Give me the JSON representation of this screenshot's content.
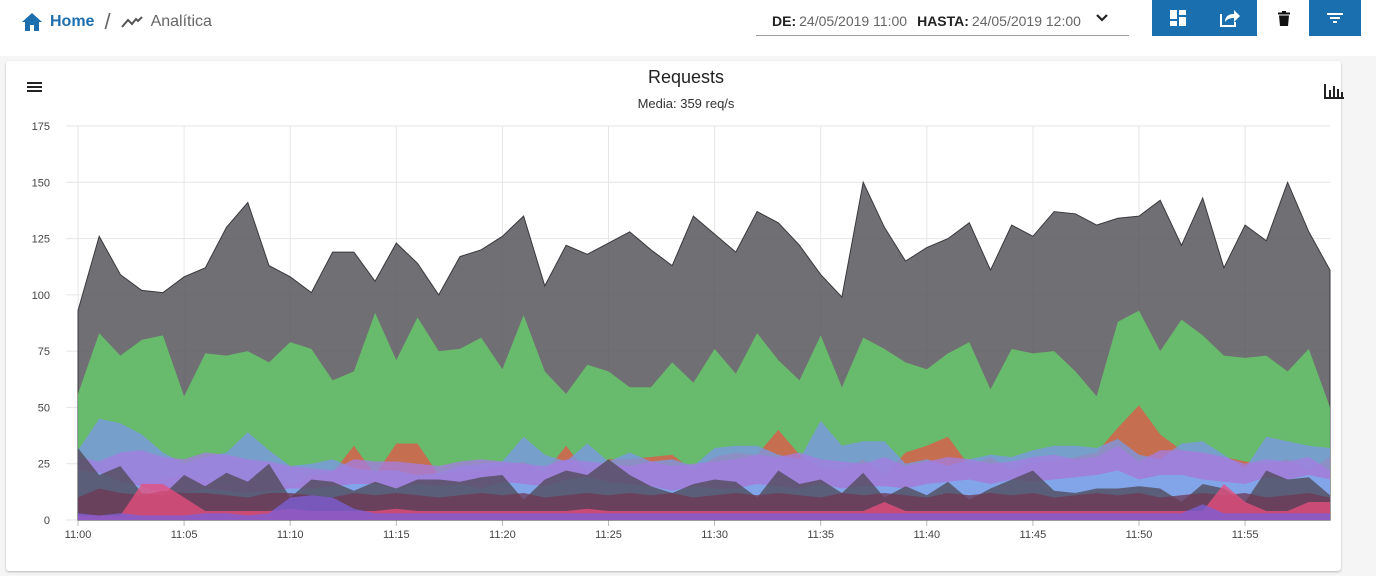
{
  "breadcrumb": {
    "home": "Home",
    "current": "Analítica"
  },
  "date_range": {
    "from_label": "DE:",
    "from_value": "24/05/2019 11:00",
    "to_label": "HASTA:",
    "to_value": "24/05/2019 12:00"
  },
  "colors": {
    "accent": "#1a6faf",
    "home_text": "#1d6fb0"
  },
  "icons": {
    "home": "home-icon",
    "analytics": "trending-icon",
    "dashboard": "dashboard-icon",
    "share": "share-icon",
    "trash": "trash-icon",
    "filter": "filter-icon",
    "menu": "menu-icon",
    "bar_chart": "bar-chart-icon",
    "chevron": "chevron-down-icon"
  },
  "chart_data": {
    "type": "area",
    "title": "Requests",
    "subtitle": "Media: 359 req/s",
    "ylim": [
      0,
      175
    ],
    "yticks": [
      0,
      25,
      50,
      75,
      100,
      125,
      150,
      175
    ],
    "xticks": [
      "11:00",
      "11:05",
      "11:10",
      "11:15",
      "11:20",
      "11:25",
      "11:30",
      "11:35",
      "11:40",
      "11:45",
      "11:50",
      "11:55"
    ],
    "grid": true,
    "x_count": 60,
    "series": [
      {
        "color": "#5c5b60",
        "values": [
          93,
          126,
          109,
          102,
          101,
          108,
          112,
          130,
          141,
          113,
          108,
          101,
          119,
          119,
          106,
          123,
          114,
          100,
          117,
          120,
          126,
          135,
          104,
          122,
          118,
          123,
          128,
          120,
          113,
          135,
          127,
          119,
          137,
          132,
          122,
          109,
          99,
          150,
          130,
          115,
          121,
          125,
          132,
          111,
          131,
          126,
          137,
          136,
          131,
          134,
          135,
          142,
          122,
          143,
          112,
          131,
          124,
          150,
          128,
          111
        ]
      },
      {
        "color": "#66cf6a",
        "values": [
          56,
          83,
          73,
          80,
          82,
          55,
          74,
          73,
          75,
          70,
          79,
          76,
          62,
          66,
          92,
          71,
          90,
          75,
          76,
          81,
          67,
          91,
          66,
          56,
          69,
          66,
          59,
          59,
          70,
          61,
          76,
          65,
          83,
          71,
          62,
          82,
          59,
          81,
          76,
          70,
          67,
          74,
          79,
          58,
          76,
          74,
          75,
          66,
          55,
          88,
          93,
          75,
          89,
          82,
          73,
          72,
          73,
          66,
          76,
          50
        ]
      },
      {
        "color": "#e05a48",
        "values": [
          18,
          16,
          14,
          17,
          18,
          20,
          17,
          16,
          18,
          18,
          15,
          20,
          21,
          33,
          20,
          34,
          34,
          20,
          22,
          22,
          24,
          26,
          21,
          33,
          21,
          27,
          27,
          28,
          29,
          22,
          28,
          30,
          29,
          40,
          29,
          23,
          22,
          27,
          20,
          30,
          33,
          37,
          24,
          28,
          22,
          26,
          26,
          28,
          30,
          41,
          51,
          38,
          31,
          30,
          28,
          26,
          25,
          27,
          22,
          28
        ]
      },
      {
        "color": "#7a99e6",
        "values": [
          31,
          45,
          43,
          38,
          30,
          25,
          28,
          30,
          39,
          31,
          24,
          25,
          27,
          23,
          22,
          22,
          20,
          21,
          24,
          25,
          26,
          37,
          29,
          26,
          34,
          26,
          30,
          26,
          27,
          24,
          32,
          33,
          33,
          29,
          27,
          44,
          33,
          35,
          35,
          25,
          27,
          24,
          27,
          29,
          28,
          31,
          33,
          33,
          32,
          36,
          29,
          27,
          34,
          35,
          29,
          23,
          37,
          35,
          33,
          32
        ]
      },
      {
        "color": "#a47ee0",
        "values": [
          28,
          26,
          30,
          31,
          28,
          27,
          30,
          29,
          27,
          26,
          24,
          23,
          22,
          27,
          26,
          26,
          25,
          24,
          26,
          27,
          26,
          25,
          24,
          27,
          26,
          25,
          24,
          26,
          24,
          25,
          26,
          27,
          29,
          28,
          30,
          27,
          26,
          25,
          28,
          24,
          26,
          28,
          27,
          25,
          26,
          28,
          29,
          27,
          28,
          33,
          26,
          31,
          31,
          30,
          28,
          25,
          27,
          26,
          28,
          22
        ]
      },
      {
        "color": "#7ab0ee",
        "values": [
          22,
          21,
          17,
          15,
          12,
          12,
          14,
          13,
          12,
          13,
          14,
          14,
          15,
          16,
          16,
          14,
          16,
          15,
          16,
          14,
          17,
          16,
          15,
          18,
          19,
          17,
          16,
          15,
          13,
          15,
          14,
          14,
          16,
          15,
          14,
          16,
          14,
          15,
          15,
          14,
          16,
          17,
          18,
          16,
          18,
          17,
          18,
          19,
          20,
          22,
          18,
          20,
          20,
          18,
          17,
          16,
          19,
          18,
          20,
          18
        ]
      },
      {
        "color": "#4f4a58",
        "values": [
          32,
          20,
          24,
          12,
          11,
          20,
          15,
          21,
          17,
          25,
          10,
          18,
          17,
          13,
          17,
          14,
          18,
          18,
          17,
          19,
          20,
          9,
          18,
          22,
          20,
          27,
          20,
          15,
          12,
          16,
          18,
          17,
          10,
          22,
          16,
          18,
          12,
          21,
          10,
          15,
          11,
          17,
          9,
          14,
          18,
          22,
          13,
          12,
          14,
          14,
          15,
          14,
          8,
          16,
          14,
          8,
          22,
          18,
          19,
          11
        ]
      },
      {
        "color": "#6d3a55",
        "values": [
          10,
          14,
          12,
          11,
          13,
          12,
          12,
          11,
          10,
          12,
          12,
          11,
          10,
          12,
          11,
          12,
          11,
          10,
          11,
          12,
          11,
          12,
          10,
          11,
          12,
          11,
          12,
          11,
          12,
          10,
          11,
          12,
          11,
          12,
          11,
          10,
          12,
          11,
          12,
          11,
          10,
          12,
          11,
          12,
          11,
          12,
          10,
          11,
          12,
          11,
          12,
          10,
          11,
          12,
          11,
          12,
          10,
          11,
          12,
          10
        ]
      },
      {
        "color": "#e6507e",
        "values": [
          2,
          2,
          2,
          16,
          16,
          10,
          4,
          4,
          4,
          4,
          5,
          4,
          4,
          4,
          4,
          5,
          4,
          4,
          4,
          4,
          4,
          4,
          4,
          4,
          5,
          4,
          4,
          4,
          4,
          4,
          4,
          4,
          4,
          4,
          4,
          4,
          4,
          4,
          8,
          4,
          4,
          4,
          4,
          4,
          4,
          4,
          4,
          4,
          4,
          4,
          4,
          4,
          4,
          4,
          16,
          8,
          4,
          4,
          8,
          8
        ]
      },
      {
        "color": "#7d5fd6",
        "values": [
          3,
          2,
          3,
          2,
          2,
          2,
          3,
          3,
          2,
          3,
          10,
          11,
          10,
          5,
          3,
          3,
          3,
          3,
          3,
          3,
          3,
          3,
          3,
          3,
          3,
          3,
          3,
          3,
          3,
          3,
          3,
          3,
          3,
          3,
          3,
          3,
          3,
          3,
          3,
          3,
          3,
          3,
          3,
          3,
          3,
          3,
          3,
          3,
          3,
          3,
          3,
          3,
          3,
          7,
          3,
          3,
          3,
          3,
          3,
          3
        ]
      }
    ]
  }
}
